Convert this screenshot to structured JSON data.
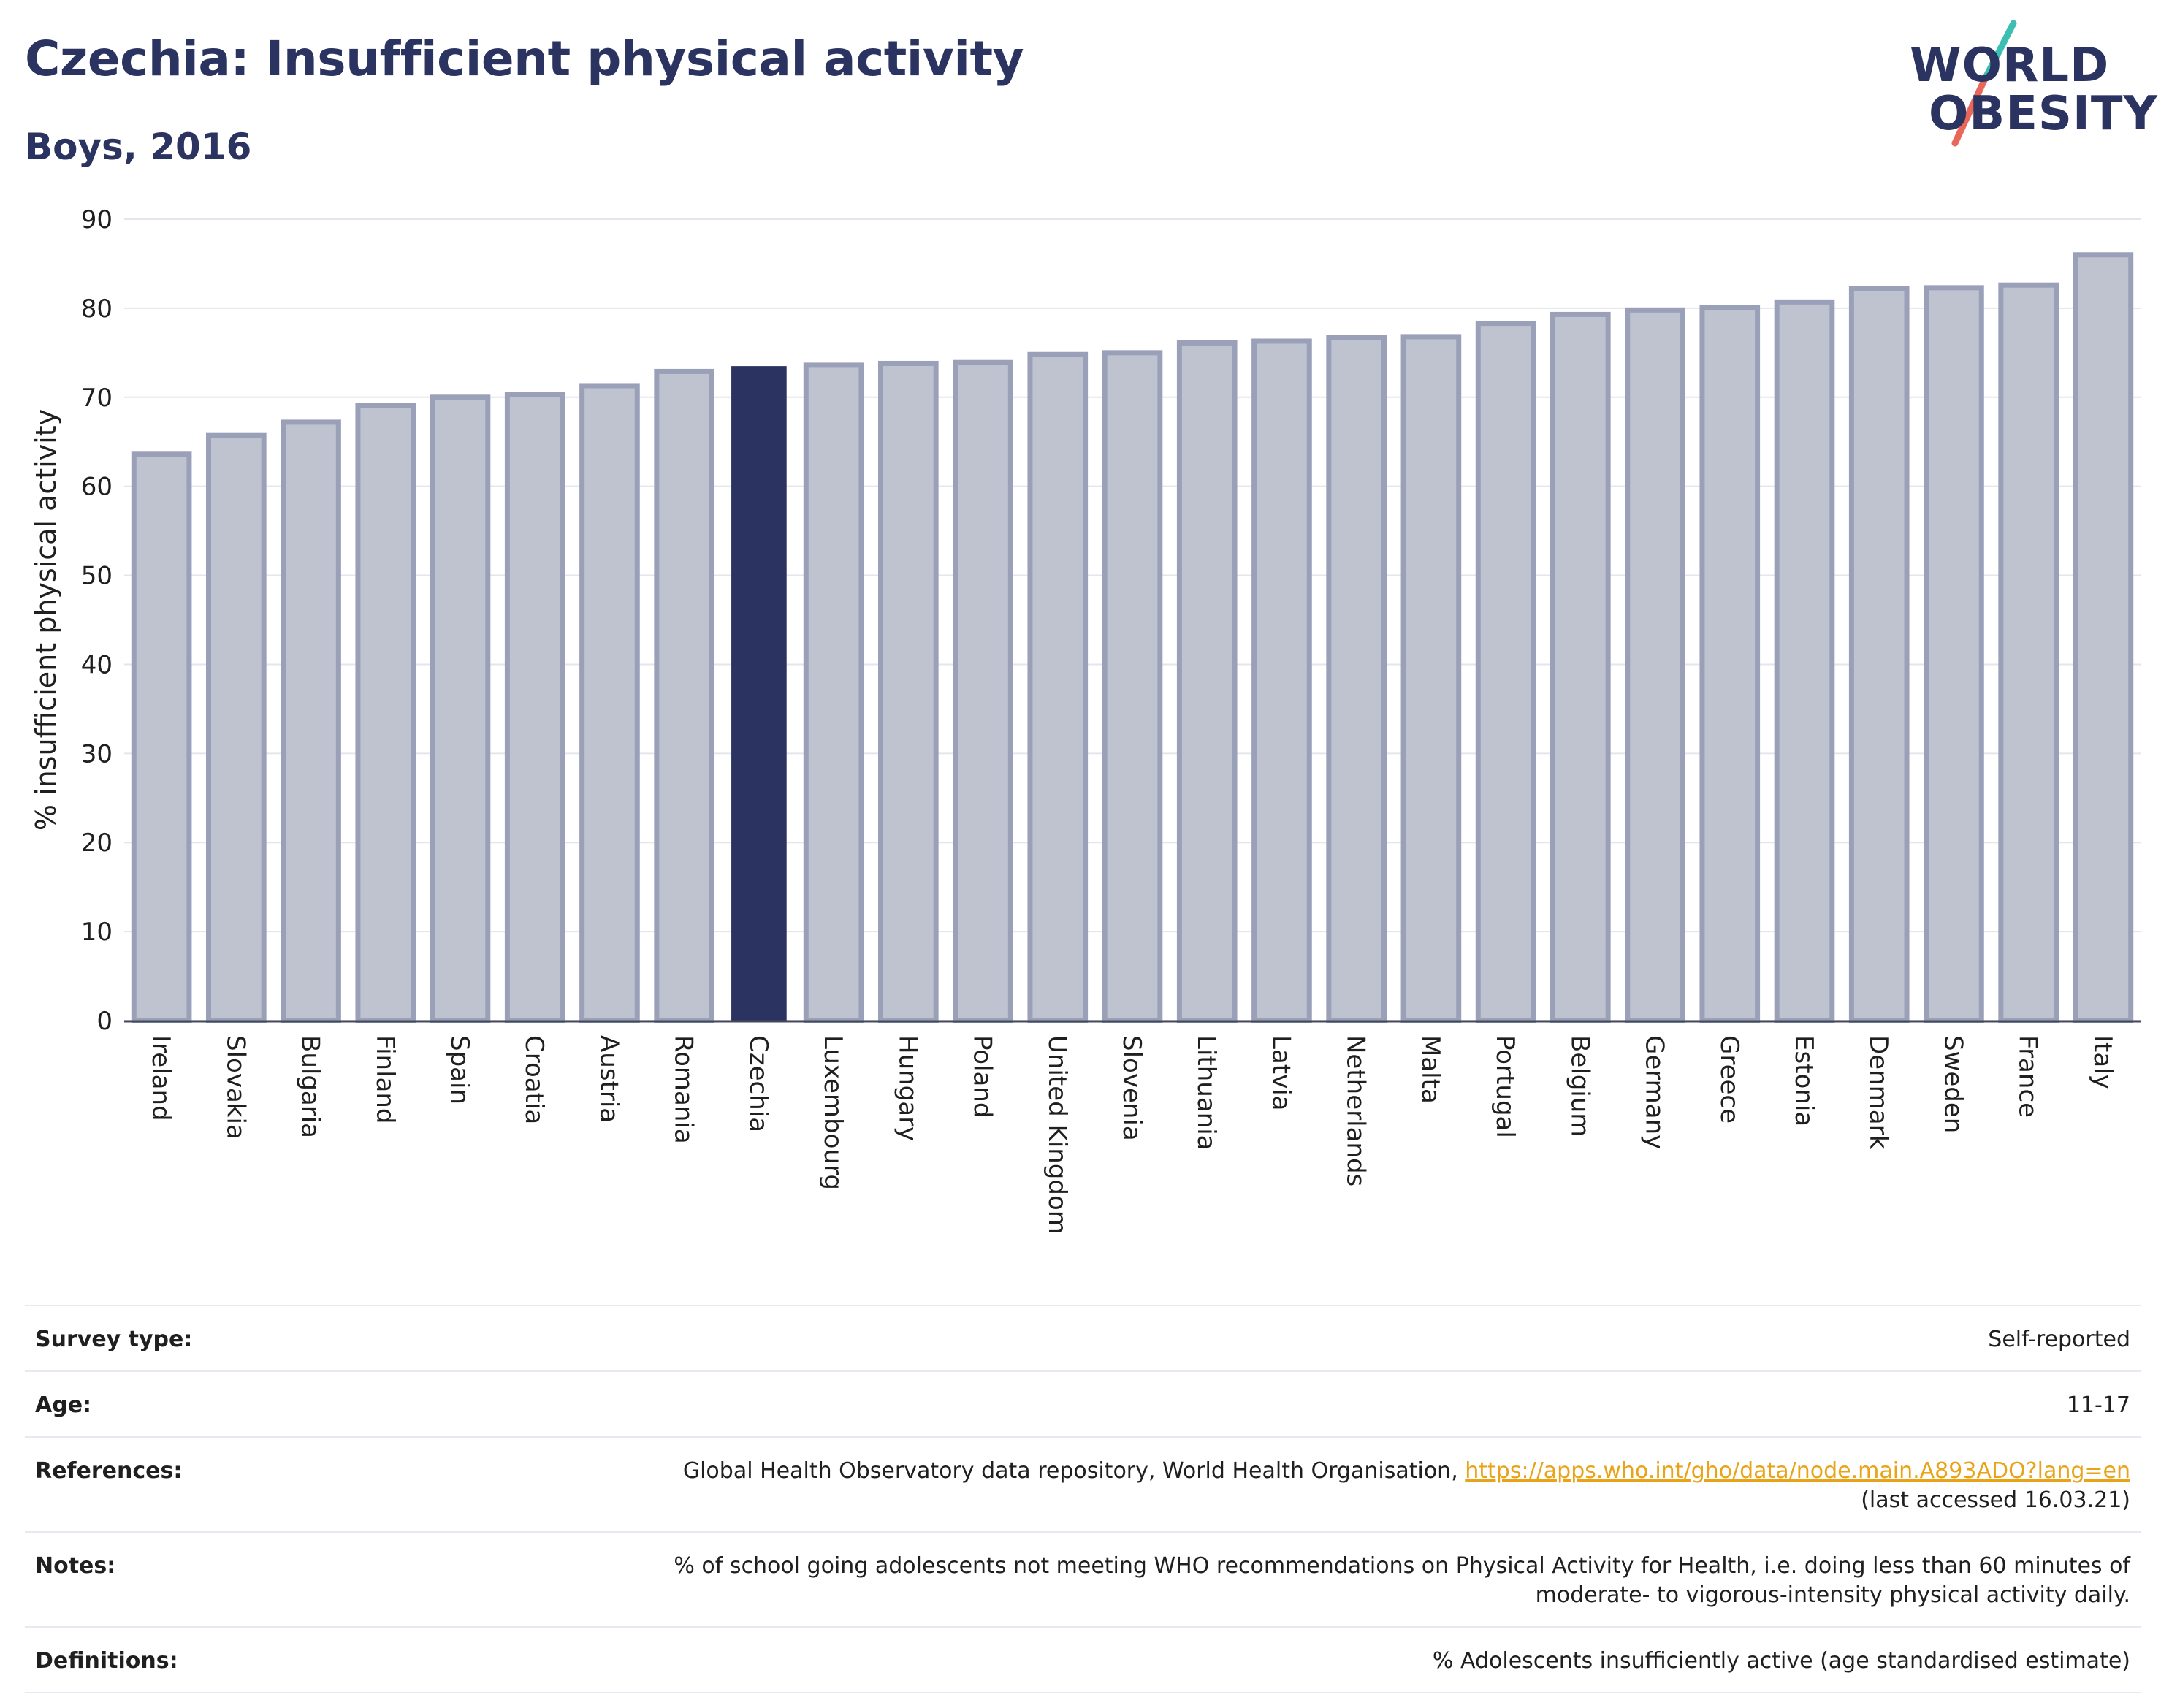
{
  "header": {
    "title": "Czechia: Insufficient physical activity",
    "subtitle": "Boys, 2016"
  },
  "logo": {
    "line1": "WORLD",
    "line2": "OBESITY"
  },
  "colors": {
    "highlight": "#2b3461",
    "bar_fill": "#bfc2cf",
    "bar_stroke": "#9aa0b8",
    "title": "#2b3461",
    "link": "#e8a317"
  },
  "chart_data": {
    "type": "bar",
    "title": "Czechia: Insufficient physical activity",
    "subtitle": "Boys, 2016",
    "xlabel": "",
    "ylabel": "% insufficient physical activity",
    "ylim": [
      0,
      90
    ],
    "yticks": [
      0,
      10,
      20,
      30,
      40,
      50,
      60,
      70,
      80,
      90
    ],
    "grid": true,
    "highlight": "Czechia",
    "categories": [
      "Ireland",
      "Slovakia",
      "Bulgaria",
      "Finland",
      "Spain",
      "Croatia",
      "Austria",
      "Romania",
      "Czechia",
      "Luxembourg",
      "Hungary",
      "Poland",
      "United Kingdom",
      "Slovenia",
      "Lithuania",
      "Latvia",
      "Netherlands",
      "Malta",
      "Portugal",
      "Belgium",
      "Germany",
      "Greece",
      "Estonia",
      "Denmark",
      "Sweden",
      "France",
      "Italy"
    ],
    "values": [
      63.6,
      65.7,
      67.2,
      69.1,
      70.0,
      70.3,
      71.3,
      72.9,
      73.5,
      73.6,
      73.8,
      73.9,
      74.8,
      75.0,
      76.1,
      76.3,
      76.7,
      76.8,
      78.3,
      79.3,
      79.8,
      80.1,
      80.7,
      82.2,
      82.3,
      82.6,
      86.0
    ]
  },
  "info": {
    "survey_type": {
      "label": "Survey type:",
      "value": "Self-reported"
    },
    "age": {
      "label": "Age:",
      "value": "11-17"
    },
    "references": {
      "label": "References:",
      "text": "Global Health Observatory data repository, World Health Organisation, ",
      "link": "https://apps.who.int/gho/data/node.main.A893ADO?lang=en",
      "accessed": "(last accessed 16.03.21)"
    },
    "notes": {
      "label": "Notes:",
      "line1": "% of school going adolescents not meeting WHO recommendations on Physical Activity for Health, i.e. doing less than 60 minutes of",
      "line2": "moderate- to vigorous-intensity physical activity daily."
    },
    "definitions": {
      "label": "Definitions:",
      "value": "% Adolescents insufficiently active (age standardised estimate)"
    }
  }
}
